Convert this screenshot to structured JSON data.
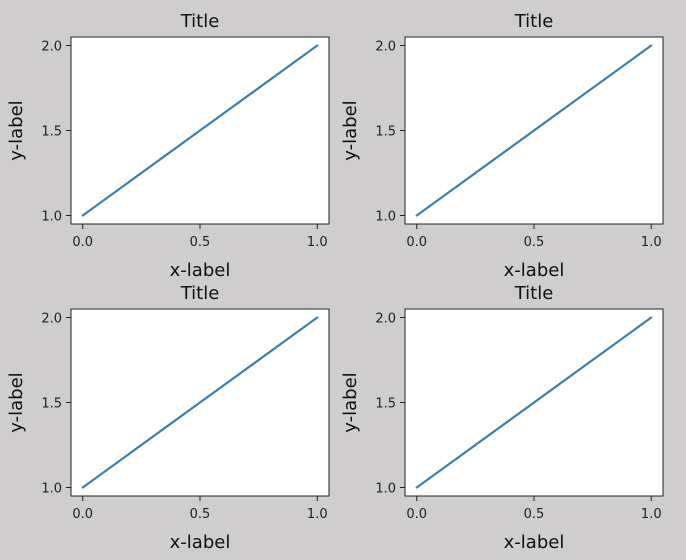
{
  "chart_data": [
    {
      "type": "line",
      "title": "Title",
      "xlabel": "x-label",
      "ylabel": "y-label",
      "xlim": [
        -0.05,
        1.05
      ],
      "ylim": [
        0.95,
        2.05
      ],
      "xticks": [
        0.0,
        0.5,
        1.0
      ],
      "xtick_labels": [
        "0.0",
        "0.5",
        "1.0"
      ],
      "yticks": [
        1.0,
        1.5,
        2.0
      ],
      "ytick_labels": [
        "1.0",
        "1.5",
        "2.0"
      ],
      "grid": false,
      "series": [
        {
          "x": [
            0,
            1
          ],
          "y": [
            1,
            2
          ],
          "color": "#3b7fb0"
        }
      ]
    },
    {
      "type": "line",
      "title": "Title",
      "xlabel": "x-label",
      "ylabel": "y-label",
      "xlim": [
        -0.05,
        1.05
      ],
      "ylim": [
        0.95,
        2.05
      ],
      "xticks": [
        0.0,
        0.5,
        1.0
      ],
      "xtick_labels": [
        "0.0",
        "0.5",
        "1.0"
      ],
      "yticks": [
        1.0,
        1.5,
        2.0
      ],
      "ytick_labels": [
        "1.0",
        "1.5",
        "2.0"
      ],
      "grid": false,
      "series": [
        {
          "x": [
            0,
            1
          ],
          "y": [
            1,
            2
          ],
          "color": "#3b7fb0"
        }
      ]
    },
    {
      "type": "line",
      "title": "Title",
      "xlabel": "x-label",
      "ylabel": "y-label",
      "xlim": [
        -0.05,
        1.05
      ],
      "ylim": [
        0.95,
        2.05
      ],
      "xticks": [
        0.0,
        0.5,
        1.0
      ],
      "xtick_labels": [
        "0.0",
        "0.5",
        "1.0"
      ],
      "yticks": [
        1.0,
        1.5,
        2.0
      ],
      "ytick_labels": [
        "1.0",
        "1.5",
        "2.0"
      ],
      "grid": false,
      "series": [
        {
          "x": [
            0,
            1
          ],
          "y": [
            1,
            2
          ],
          "color": "#3b7fb0"
        }
      ]
    },
    {
      "type": "line",
      "title": "Title",
      "xlabel": "x-label",
      "ylabel": "y-label",
      "xlim": [
        -0.05,
        1.05
      ],
      "ylim": [
        0.95,
        2.05
      ],
      "xticks": [
        0.0,
        0.5,
        1.0
      ],
      "xtick_labels": [
        "0.0",
        "0.5",
        "1.0"
      ],
      "yticks": [
        1.0,
        1.5,
        2.0
      ],
      "ytick_labels": [
        "1.0",
        "1.5",
        "2.0"
      ],
      "grid": false,
      "series": [
        {
          "x": [
            0,
            1
          ],
          "y": [
            1,
            2
          ],
          "color": "#3b7fb0"
        }
      ]
    }
  ]
}
